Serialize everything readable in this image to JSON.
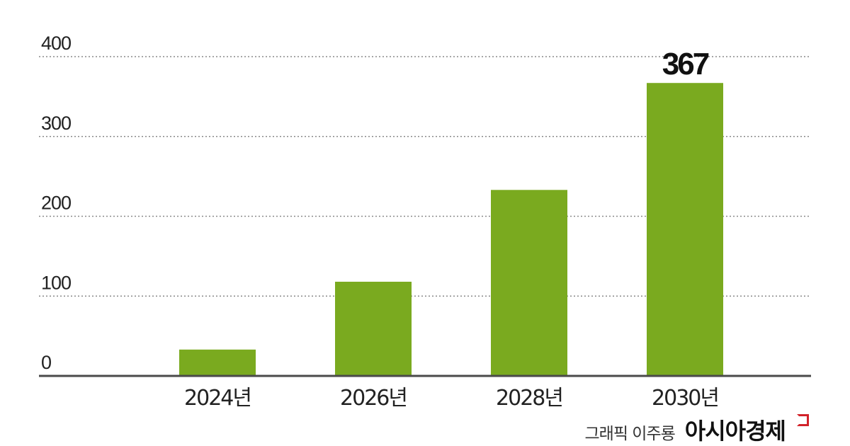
{
  "chart_data": {
    "type": "bar",
    "categories": [
      "2024년",
      "2026년",
      "2028년",
      "2030년"
    ],
    "values": [
      33,
      118,
      233,
      367
    ],
    "data_labels": [
      null,
      null,
      null,
      "367"
    ],
    "yticks": [
      "0",
      "100",
      "200",
      "300",
      "400"
    ],
    "ylim": [
      0,
      400
    ],
    "grid": true,
    "title": "",
    "xlabel": "",
    "ylabel": "",
    "bar_color": "#7aaa1f"
  },
  "credit": {
    "text": "그래픽 이주룡",
    "logo": "아시아경제",
    "logo_mark_color": "#d2232a"
  }
}
